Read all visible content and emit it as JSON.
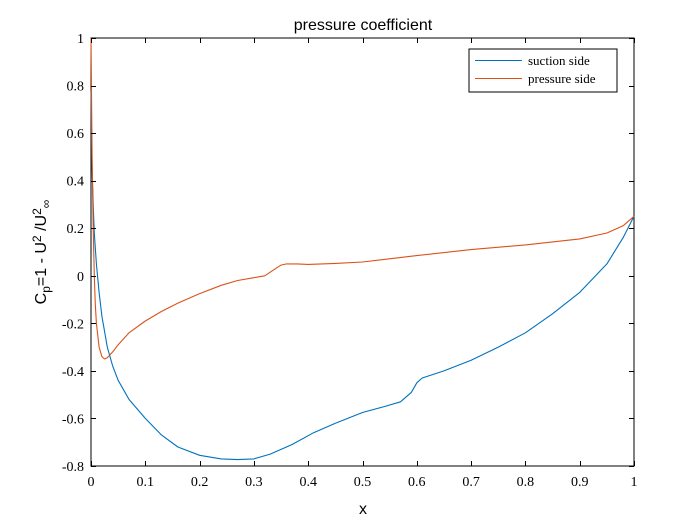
{
  "chart_data": {
    "type": "line",
    "title": "pressure coefficient",
    "xlabel": "x",
    "ylabel": {
      "parts": [
        "C",
        "p",
        "=1 - U",
        "2",
        " /U",
        "2",
        "∞"
      ]
    },
    "xlim": [
      0,
      1
    ],
    "ylim": [
      -0.8,
      1
    ],
    "x_ticks": [
      0,
      0.1,
      0.2,
      0.3,
      0.4,
      0.5,
      0.6,
      0.7,
      0.8,
      0.9,
      1
    ],
    "x_tick_labels": [
      "0",
      "0.1",
      "0.2",
      "0.3",
      "0.4",
      "0.5",
      "0.6",
      "0.7",
      "0.8",
      "0.9",
      "1"
    ],
    "y_ticks": [
      -0.8,
      -0.6,
      -0.4,
      -0.2,
      0,
      0.2,
      0.4,
      0.6,
      0.8,
      1
    ],
    "y_tick_labels": [
      "-0.8",
      "-0.6",
      "-0.4",
      "-0.2",
      "0",
      "0.2",
      "0.4",
      "0.6",
      "0.8",
      "1"
    ],
    "grid": false,
    "legend_position": "top-right",
    "series": [
      {
        "name": "suction side",
        "color": "#0072BD",
        "x": [
          0,
          0.002,
          0.004,
          0.006,
          0.01,
          0.015,
          0.02,
          0.03,
          0.04,
          0.05,
          0.07,
          0.1,
          0.13,
          0.16,
          0.2,
          0.24,
          0.27,
          0.3,
          0.33,
          0.37,
          0.41,
          0.45,
          0.5,
          0.54,
          0.57,
          0.59,
          0.6,
          0.61,
          0.65,
          0.7,
          0.75,
          0.8,
          0.85,
          0.9,
          0.95,
          0.98,
          1
        ],
        "y": [
          0.78,
          0.45,
          0.3,
          0.18,
          0.05,
          -0.07,
          -0.17,
          -0.3,
          -0.38,
          -0.44,
          -0.52,
          -0.6,
          -0.67,
          -0.72,
          -0.755,
          -0.77,
          -0.773,
          -0.77,
          -0.75,
          -0.71,
          -0.66,
          -0.62,
          -0.575,
          -0.55,
          -0.53,
          -0.49,
          -0.45,
          -0.43,
          -0.4,
          -0.355,
          -0.3,
          -0.24,
          -0.16,
          -0.07,
          0.05,
          0.16,
          0.25
        ]
      },
      {
        "name": "pressure side",
        "color": "#D95319",
        "x": [
          0,
          0.002,
          0.004,
          0.006,
          0.008,
          0.01,
          0.015,
          0.02,
          0.025,
          0.03,
          0.04,
          0.05,
          0.07,
          0.1,
          0.13,
          0.16,
          0.2,
          0.24,
          0.27,
          0.3,
          0.32,
          0.34,
          0.35,
          0.36,
          0.38,
          0.4,
          0.45,
          0.5,
          0.6,
          0.7,
          0.8,
          0.9,
          0.95,
          0.98,
          1
        ],
        "y": [
          1.0,
          0.5,
          0.2,
          0.0,
          -0.12,
          -0.2,
          -0.3,
          -0.34,
          -0.35,
          -0.345,
          -0.32,
          -0.29,
          -0.24,
          -0.19,
          -0.15,
          -0.115,
          -0.075,
          -0.04,
          -0.02,
          -0.008,
          0.0,
          0.03,
          0.045,
          0.05,
          0.05,
          0.048,
          0.052,
          0.058,
          0.085,
          0.11,
          0.13,
          0.155,
          0.18,
          0.21,
          0.25
        ]
      }
    ]
  }
}
